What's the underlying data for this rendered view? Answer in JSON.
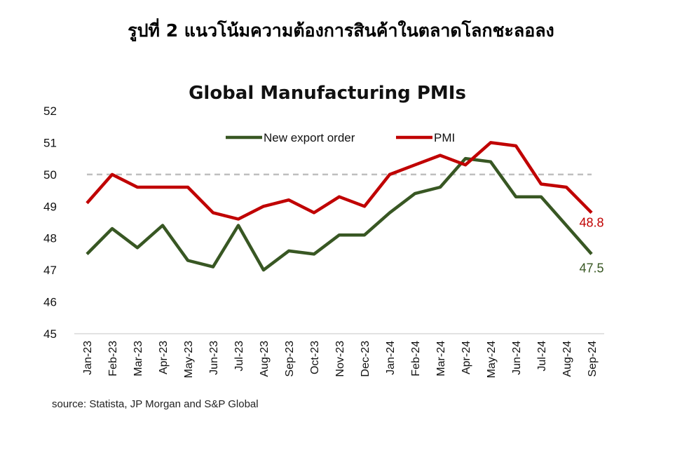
{
  "figure_title": "รูปที่ 2 แนวโน้มความต้องการสินค้าในตลาดโลกชะลอลง",
  "source_note": "source: Statista, JP Morgan and S&P Global",
  "chart_data": {
    "type": "line",
    "title": "Global Manufacturing PMIs",
    "xlabel": "",
    "ylabel": "",
    "ylim": [
      45,
      52
    ],
    "yticks": [
      45,
      46,
      47,
      48,
      49,
      50,
      51,
      52
    ],
    "reference_line": 50,
    "legend_position": "top",
    "categories": [
      "Jan-23",
      "Feb-23",
      "Mar-23",
      "Apr-23",
      "May-23",
      "Jun-23",
      "Jul-23",
      "Aug-23",
      "Sep-23",
      "Oct-23",
      "Nov-23",
      "Dec-23",
      "Jan-24",
      "Feb-24",
      "Mar-24",
      "Apr-24",
      "May-24",
      "Jun-24",
      "Jul-24",
      "Aug-24",
      "Sep-24"
    ],
    "series": [
      {
        "name": "New export order",
        "color": "#385723",
        "values": [
          47.5,
          48.3,
          47.7,
          48.4,
          47.3,
          47.1,
          48.4,
          47.0,
          47.6,
          47.5,
          48.1,
          48.1,
          48.8,
          49.4,
          49.6,
          50.5,
          50.4,
          49.3,
          49.3,
          48.4,
          47.5
        ],
        "end_label": "47.5"
      },
      {
        "name": "PMI",
        "color": "#C00000",
        "values": [
          49.1,
          50.0,
          49.6,
          49.6,
          49.6,
          48.8,
          48.6,
          49.0,
          49.2,
          48.8,
          49.3,
          49.0,
          50.0,
          50.3,
          50.6,
          50.3,
          51.0,
          50.9,
          49.7,
          49.6,
          48.8
        ],
        "end_label": "48.8"
      }
    ]
  }
}
